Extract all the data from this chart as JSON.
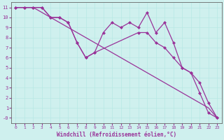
{
  "xlabel": "Windchill (Refroidissement éolien,°C)",
  "bg_color": "#cff0ee",
  "grid_color": "#b8e8e4",
  "line_color": "#993399",
  "spine_color": "#666666",
  "xlim": [
    -0.5,
    23.5
  ],
  "ylim": [
    -0.5,
    11.5
  ],
  "xticks": [
    0,
    1,
    2,
    3,
    4,
    5,
    6,
    7,
    8,
    9,
    10,
    11,
    12,
    13,
    14,
    15,
    16,
    17,
    18,
    19,
    20,
    21,
    22,
    23
  ],
  "yticks": [
    0,
    1,
    2,
    3,
    4,
    5,
    6,
    7,
    8,
    9,
    10,
    11
  ],
  "ytick_labels": [
    "-0",
    "1",
    "2",
    "3",
    "4",
    "5",
    "6",
    "7",
    "8",
    "9",
    "10",
    "11"
  ],
  "line1_x": [
    0,
    1,
    2,
    3,
    4,
    5,
    6,
    7,
    8,
    9,
    10,
    11,
    12,
    13,
    14,
    15,
    16,
    17,
    18,
    19,
    20,
    21,
    22,
    23
  ],
  "line1_y": [
    11,
    11,
    11,
    10.5,
    10,
    9.5,
    9.0,
    8.5,
    8.0,
    7.5,
    7.0,
    6.5,
    6.0,
    5.5,
    5.0,
    4.5,
    4.0,
    3.5,
    3.0,
    2.5,
    2.0,
    1.5,
    1.0,
    0.0
  ],
  "line2_x": [
    0,
    1,
    2,
    3,
    4,
    5,
    6,
    7,
    8,
    9,
    10,
    11,
    12,
    13,
    14,
    15,
    16,
    17,
    18,
    19,
    20,
    21,
    22,
    23
  ],
  "line2_y": [
    11,
    11,
    11,
    11,
    10,
    10,
    9.5,
    7.5,
    6.0,
    6.5,
    8.5,
    9.5,
    9.0,
    9.5,
    9.0,
    10.5,
    8.5,
    9.5,
    7.5,
    5.0,
    4.5,
    2.5,
    0.5,
    0.0
  ],
  "line3_x": [
    0,
    1,
    2,
    3,
    4,
    5,
    6,
    7,
    8,
    9,
    14,
    15,
    16,
    17,
    18,
    19,
    20,
    21,
    22,
    23
  ],
  "line3_y": [
    11,
    11,
    11,
    11,
    10,
    10,
    9.5,
    7.5,
    6.0,
    6.5,
    8.5,
    8.5,
    7.5,
    7.0,
    6.0,
    5.0,
    4.5,
    3.5,
    1.5,
    0.0
  ]
}
